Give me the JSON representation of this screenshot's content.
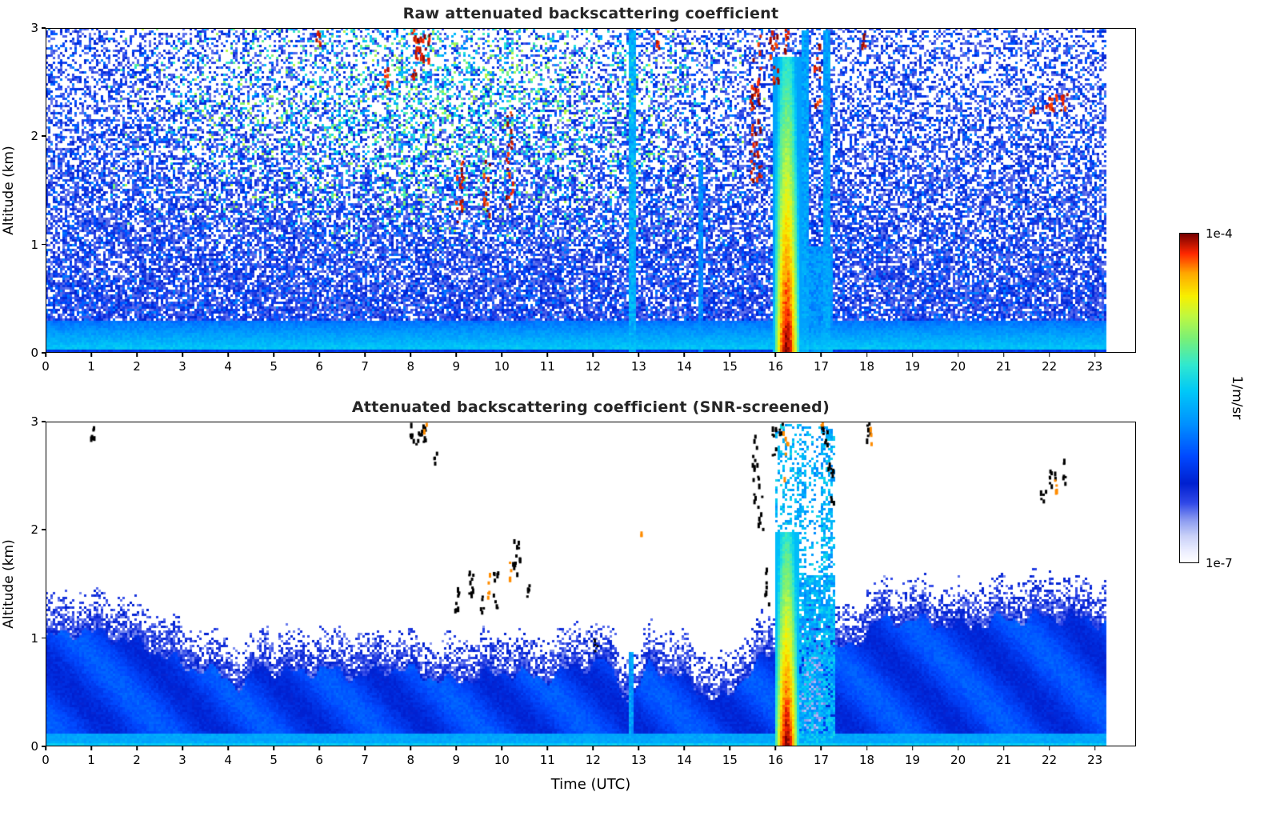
{
  "chart_data": [
    {
      "type": "heatmap",
      "title": "Raw attenuated backscattering coefficient",
      "xlabel": "",
      "ylabel": "Altitude (km)",
      "xlim": [
        0,
        23.9
      ],
      "ylim": [
        0,
        3
      ],
      "xticks": [
        0,
        1,
        2,
        3,
        4,
        5,
        6,
        7,
        8,
        9,
        10,
        11,
        12,
        13,
        14,
        15,
        16,
        17,
        18,
        19,
        20,
        21,
        22,
        23
      ],
      "yticks": [
        0,
        1,
        2,
        3
      ],
      "value_scale": {
        "min": "1e-7",
        "max": "1e-4",
        "units": "1/m/sr"
      },
      "model": {
        "seed": 1234567,
        "data_end": 23.2,
        "surface_layer": {
          "top_km": 0.3
        },
        "speckle": {
          "fill_at_0km": 0.9,
          "fill_slope_per_km": -0.18,
          "value_min": 0.15,
          "value_spread": 0.13
        },
        "elevated_green_region": {
          "t_center": 8.5,
          "t_halfwidth": 7.5,
          "alt_start": 0.9,
          "strength": 0.6,
          "value_min": 0.42,
          "value_spread": 0.33
        },
        "plume": {
          "t_center": 16.22,
          "t_halfwidth": 0.3,
          "top_km": 2.75,
          "value_surface": 1.0,
          "value_lapse_per_km": 0.15
        },
        "cyan_streaks": [
          {
            "t": 12.82,
            "halfwidth": 0.07,
            "top_km": 3.0,
            "value": 0.52
          },
          {
            "t": 14.35,
            "halfwidth": 0.05,
            "top_km": 1.8,
            "value": 0.46
          },
          {
            "t": 16.62,
            "halfwidth": 0.06,
            "top_km": 3.0,
            "value": 0.5
          },
          {
            "t": 17.12,
            "halfwidth": 0.08,
            "top_km": 3.0,
            "value": 0.5
          },
          {
            "t": 16.88,
            "halfwidth": 0.35,
            "top_km": 1.0,
            "value": 0.48
          }
        ],
        "red_specks": [
          {
            "t": 5.95,
            "alt": 2.9,
            "rt": 0.05,
            "ra": 0.08,
            "n": 6
          },
          {
            "t": 7.45,
            "alt": 2.55,
            "rt": 0.05,
            "ra": 0.1,
            "n": 7
          },
          {
            "t": 8.2,
            "alt": 2.85,
            "rt": 0.22,
            "ra": 0.15,
            "n": 34
          },
          {
            "t": 8.05,
            "alt": 2.6,
            "rt": 0.06,
            "ra": 0.08,
            "n": 6
          },
          {
            "t": 9.05,
            "alt": 1.5,
            "rt": 0.08,
            "ra": 0.3,
            "n": 16
          },
          {
            "t": 9.65,
            "alt": 1.55,
            "rt": 0.07,
            "ra": 0.28,
            "n": 12
          },
          {
            "t": 10.15,
            "alt": 1.8,
            "rt": 0.08,
            "ra": 0.45,
            "n": 22
          },
          {
            "t": 13.4,
            "alt": 2.9,
            "rt": 0.05,
            "ra": 0.08,
            "n": 5
          },
          {
            "t": 15.55,
            "alt": 2.3,
            "rt": 0.12,
            "ra": 0.7,
            "n": 46
          },
          {
            "t": 15.95,
            "alt": 2.75,
            "rt": 0.1,
            "ra": 0.25,
            "n": 20
          },
          {
            "t": 16.2,
            "alt": 2.9,
            "rt": 0.08,
            "ra": 0.1,
            "n": 8
          },
          {
            "t": 16.9,
            "alt": 2.6,
            "rt": 0.07,
            "ra": 0.3,
            "n": 12
          },
          {
            "t": 17.9,
            "alt": 2.9,
            "rt": 0.05,
            "ra": 0.1,
            "n": 6
          },
          {
            "t": 22.1,
            "alt": 2.32,
            "rt": 0.28,
            "ra": 0.08,
            "n": 20
          },
          {
            "t": 21.6,
            "alt": 2.25,
            "rt": 0.05,
            "ra": 0.05,
            "n": 4
          }
        ]
      }
    },
    {
      "type": "heatmap",
      "title": "Attenuated backscattering coefficient (SNR-screened)",
      "xlabel": "Time (UTC)",
      "ylabel": "Altitude (km)",
      "xlim": [
        0,
        23.9
      ],
      "ylim": [
        0,
        3
      ],
      "xticks": [
        0,
        1,
        2,
        3,
        4,
        5,
        6,
        7,
        8,
        9,
        10,
        11,
        12,
        13,
        14,
        15,
        16,
        17,
        18,
        19,
        20,
        21,
        22,
        23
      ],
      "yticks": [
        0,
        1,
        2,
        3
      ],
      "value_scale": {
        "min": "1e-7",
        "max": "1e-4",
        "units": "1/m/sr"
      },
      "model": {
        "seed": 987654,
        "data_end": 23.2,
        "interior_value": 0.3,
        "surface_value": 0.5,
        "fringe_km": 0.28,
        "blh_points": [
          [
            0,
            1.12
          ],
          [
            0.7,
            1.2
          ],
          [
            1.5,
            1.15
          ],
          [
            2.2,
            1.05
          ],
          [
            3,
            0.88
          ],
          [
            3.8,
            0.8
          ],
          [
            4.3,
            0.68
          ],
          [
            4.7,
            0.88
          ],
          [
            5.2,
            0.8
          ],
          [
            6,
            0.84
          ],
          [
            7,
            0.78
          ],
          [
            7.5,
            0.86
          ],
          [
            8.2,
            0.8
          ],
          [
            8.8,
            0.72
          ],
          [
            9.5,
            0.78
          ],
          [
            10.2,
            0.82
          ],
          [
            10.8,
            0.75
          ],
          [
            11.5,
            0.85
          ],
          [
            12.2,
            0.92
          ],
          [
            12.8,
            0.55
          ],
          [
            13.2,
            0.86
          ],
          [
            13.8,
            0.8
          ],
          [
            14.4,
            0.62
          ],
          [
            14.9,
            0.55
          ],
          [
            15.4,
            0.85
          ],
          [
            16,
            1.0
          ],
          [
            16.5,
            1.05
          ],
          [
            17,
            1.0
          ],
          [
            17.6,
            1.05
          ],
          [
            18.2,
            1.28
          ],
          [
            19,
            1.3
          ],
          [
            20,
            1.24
          ],
          [
            21,
            1.3
          ],
          [
            22,
            1.34
          ],
          [
            23.2,
            1.28
          ]
        ],
        "plume": {
          "t_center": 16.22,
          "t_halfwidth": 0.27,
          "top_km": 2.0,
          "value_surface": 1.0,
          "value_lapse_per_km": 0.2
        },
        "plume_top_speckle": {
          "fill": 0.35,
          "value_min": 0.42,
          "value_spread": 0.15
        },
        "cyan_column": {
          "t0": 16.49,
          "t1": 17.28,
          "top_km": 3.0,
          "low_top_km": 1.6,
          "fill_low": 0.8,
          "fill_high": 0.22,
          "dense_fill": 0.5,
          "value_min": 0.4,
          "value_spread": 0.16,
          "dense_subcolumns": [
            {
              "t": 16.57,
              "halfwidth": 0.06
            },
            {
              "t": 17.1,
              "halfwidth": 0.12
            }
          ]
        },
        "attenuated_patch": {
          "t": 16.78,
          "alt": 0.5,
          "rt": 0.28,
          "ra": 0.38,
          "value": 0.09
        },
        "streaks": [
          {
            "t": 12.82,
            "halfwidth": 0.05,
            "top_km": 0.88,
            "value": 0.5
          }
        ],
        "black_specks": [
          {
            "t": 1.02,
            "alt": 2.93,
            "rt": 0.05,
            "ra": 0.07,
            "n": 6
          },
          {
            "t": 8.15,
            "alt": 2.9,
            "rt": 0.18,
            "ra": 0.1,
            "n": 22
          },
          {
            "t": 8.52,
            "alt": 2.68,
            "rt": 0.04,
            "ra": 0.06,
            "n": 4
          },
          {
            "t": 9.0,
            "alt": 1.38,
            "rt": 0.05,
            "ra": 0.12,
            "n": 8
          },
          {
            "t": 9.3,
            "alt": 1.5,
            "rt": 0.06,
            "ra": 0.15,
            "n": 10
          },
          {
            "t": 9.55,
            "alt": 1.3,
            "rt": 0.04,
            "ra": 0.1,
            "n": 5
          },
          {
            "t": 9.85,
            "alt": 1.45,
            "rt": 0.06,
            "ra": 0.18,
            "n": 9
          },
          {
            "t": 10.3,
            "alt": 1.75,
            "rt": 0.08,
            "ra": 0.2,
            "n": 12
          },
          {
            "t": 10.55,
            "alt": 1.45,
            "rt": 0.04,
            "ra": 0.1,
            "n": 5
          },
          {
            "t": 12.05,
            "alt": 0.95,
            "rt": 0.04,
            "ra": 0.06,
            "n": 4
          },
          {
            "t": 15.55,
            "alt": 2.6,
            "rt": 0.08,
            "ra": 0.35,
            "n": 16
          },
          {
            "t": 15.65,
            "alt": 2.15,
            "rt": 0.06,
            "ra": 0.2,
            "n": 8
          },
          {
            "t": 15.8,
            "alt": 1.5,
            "rt": 0.05,
            "ra": 0.18,
            "n": 8
          },
          {
            "t": 15.95,
            "alt": 2.85,
            "rt": 0.06,
            "ra": 0.15,
            "n": 8
          },
          {
            "t": 16.1,
            "alt": 2.95,
            "rt": 0.04,
            "ra": 0.06,
            "n": 4
          },
          {
            "t": 17.05,
            "alt": 2.9,
            "rt": 0.07,
            "ra": 0.12,
            "n": 8
          },
          {
            "t": 17.2,
            "alt": 2.45,
            "rt": 0.07,
            "ra": 0.2,
            "n": 10
          },
          {
            "t": 18.02,
            "alt": 2.92,
            "rt": 0.05,
            "ra": 0.1,
            "n": 6
          },
          {
            "t": 21.85,
            "alt": 2.32,
            "rt": 0.06,
            "ra": 0.1,
            "n": 5
          },
          {
            "t": 22.05,
            "alt": 2.45,
            "rt": 0.08,
            "ra": 0.12,
            "n": 8
          },
          {
            "t": 22.3,
            "alt": 2.55,
            "rt": 0.06,
            "ra": 0.12,
            "n": 6
          }
        ],
        "orange_specks": [
          {
            "t": 9.7,
            "alt": 1.5,
            "rt": 0.04,
            "ra": 0.12,
            "n": 5
          },
          {
            "t": 10.15,
            "alt": 1.65,
            "rt": 0.03,
            "ra": 0.1,
            "n": 4
          },
          {
            "t": 16.2,
            "alt": 2.7,
            "rt": 0.05,
            "ra": 0.25,
            "n": 6
          },
          {
            "t": 17.0,
            "alt": 2.98,
            "rt": 0.02,
            "ra": 0.03,
            "n": 2
          },
          {
            "t": 18.07,
            "alt": 2.88,
            "rt": 0.03,
            "ra": 0.08,
            "n": 3
          },
          {
            "t": 22.12,
            "alt": 2.4,
            "rt": 0.04,
            "ra": 0.08,
            "n": 4
          },
          {
            "t": 8.3,
            "alt": 2.95,
            "rt": 0.03,
            "ra": 0.04,
            "n": 2
          },
          {
            "t": 13.05,
            "alt": 1.95,
            "rt": 0.02,
            "ra": 0.05,
            "n": 2
          }
        ]
      }
    }
  ],
  "colorbar": {
    "top_label": "1e-4",
    "bottom_label": "1e-7",
    "units": "1/m/sr",
    "stops": [
      [
        0.0,
        "#ffffff"
      ],
      [
        0.04,
        "#e8eaff"
      ],
      [
        0.08,
        "#c8d0f8"
      ],
      [
        0.13,
        "#8898f0"
      ],
      [
        0.18,
        "#3048e8"
      ],
      [
        0.24,
        "#0020d0"
      ],
      [
        0.32,
        "#0048ff"
      ],
      [
        0.42,
        "#0090ff"
      ],
      [
        0.52,
        "#00c8f8"
      ],
      [
        0.6,
        "#30e8d0"
      ],
      [
        0.68,
        "#78f078"
      ],
      [
        0.75,
        "#c0f840"
      ],
      [
        0.81,
        "#f8f000"
      ],
      [
        0.88,
        "#ffa800"
      ],
      [
        0.94,
        "#ff2800"
      ],
      [
        1.0,
        "#780000"
      ]
    ],
    "black_color": "#000000",
    "orange_color": "#ff8c00"
  }
}
